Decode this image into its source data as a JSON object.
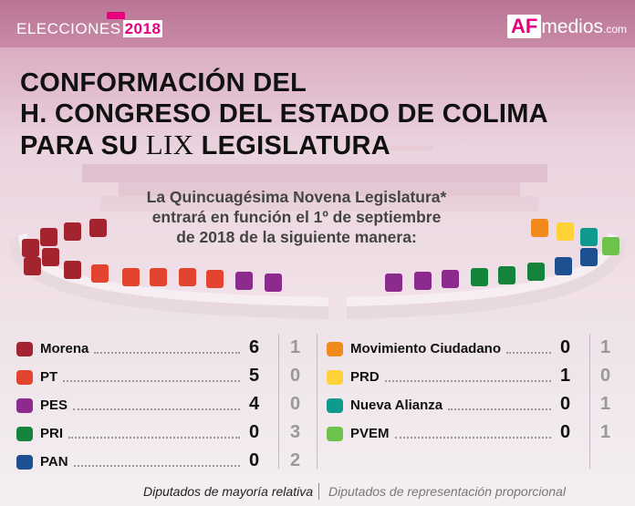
{
  "header": {
    "elecciones_label": "ELECCIONES",
    "elecciones_year": "2018",
    "logo_af": "AF",
    "logo_medios": "medios",
    "logo_com": ".com"
  },
  "title": {
    "line1": "CONFORMACIÓN DEL",
    "line2": "H. CONGRESO DEL ESTADO DE COLIMA",
    "line3_a": "PARA SU ",
    "line3_roman": "LIX",
    "line3_b": " LEGISLATURA"
  },
  "subtitle": {
    "line1": "La Quincuagésima Novena Legislatura*",
    "line2": "entrará en función el 1º de septiembre",
    "line3": "de 2018 de la siguiente manera:"
  },
  "parties_left": [
    {
      "name": "Morena",
      "mayoria": "6",
      "rp": "1",
      "color": "#a3242f"
    },
    {
      "name": "PT",
      "mayoria": "5",
      "rp": "0",
      "color": "#e2442f"
    },
    {
      "name": "PES",
      "mayoria": "4",
      "rp": "0",
      "color": "#8d2a8e"
    },
    {
      "name": "PRI",
      "mayoria": "0",
      "rp": "3",
      "color": "#14833b"
    },
    {
      "name": "PAN",
      "mayoria": "0",
      "rp": "2",
      "color": "#1d4f91"
    }
  ],
  "parties_right": [
    {
      "name": "Movimiento Ciudadano",
      "mayoria": "0",
      "rp": "1",
      "color": "#f08a1c"
    },
    {
      "name": "PRD",
      "mayoria": "1",
      "rp": "0",
      "color": "#ffd23a"
    },
    {
      "name": "Nueva Alianza",
      "mayoria": "0",
      "rp": "1",
      "color": "#0f9a8f"
    },
    {
      "name": "PVEM",
      "mayoria": "0",
      "rp": "1",
      "color": "#6cc24a"
    }
  ],
  "footer": {
    "mayoria_label": "Diputados de mayoría relativa",
    "rp_label": "Diputados de representación proporcional"
  }
}
